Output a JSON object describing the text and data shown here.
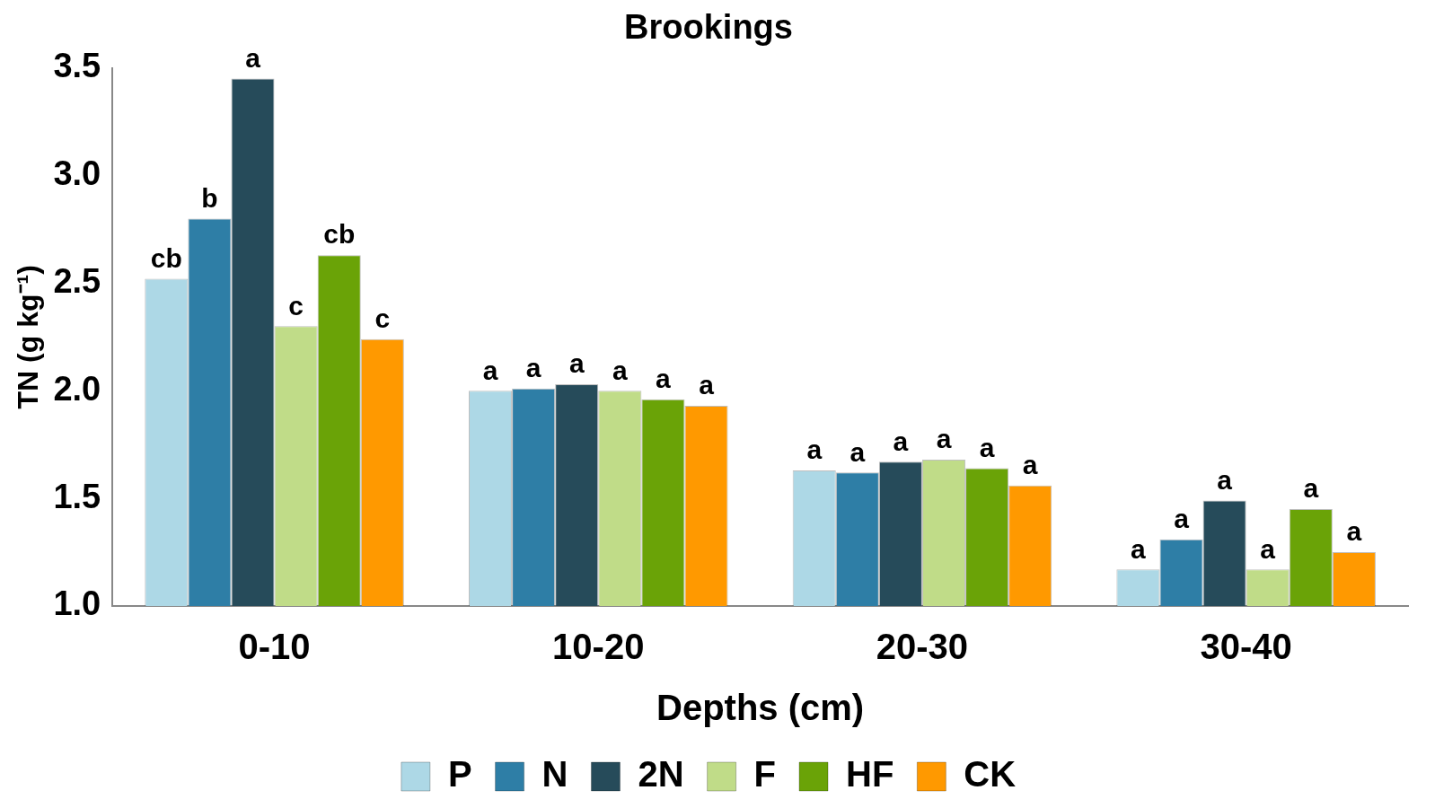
{
  "chart_data": {
    "type": "bar",
    "title": "Brookings",
    "xlabel": "Depths (cm)",
    "ylabel": "TN (g kg⁻¹)",
    "categories": [
      "0-10",
      "10-20",
      "20-30",
      "30-40"
    ],
    "series": [
      {
        "name": "P",
        "color": "#add8e6",
        "values": [
          2.52,
          2.0,
          1.63,
          1.17
        ],
        "value_labels": [
          "cb",
          "a",
          "a",
          "a"
        ]
      },
      {
        "name": "N",
        "color": "#2e7ea6",
        "values": [
          2.8,
          2.01,
          1.62,
          1.31
        ],
        "value_labels": [
          "b",
          "a",
          "a",
          "a"
        ]
      },
      {
        "name": "2N",
        "color": "#264b5a",
        "values": [
          3.45,
          2.03,
          1.67,
          1.49
        ],
        "value_labels": [
          "a",
          "a",
          "a",
          "a"
        ]
      },
      {
        "name": "F",
        "color": "#c0dc88",
        "values": [
          2.3,
          2.0,
          1.68,
          1.17
        ],
        "value_labels": [
          "c",
          "a",
          "a",
          "a"
        ]
      },
      {
        "name": "HF",
        "color": "#6aa307",
        "values": [
          2.63,
          1.96,
          1.64,
          1.45
        ],
        "value_labels": [
          "cb",
          "a",
          "a",
          "a"
        ]
      },
      {
        "name": "CK",
        "color": "#ff9900",
        "values": [
          2.24,
          1.93,
          1.56,
          1.25
        ],
        "value_labels": [
          "c",
          "a",
          "a",
          "a"
        ]
      }
    ],
    "ylim": [
      1.0,
      3.5
    ],
    "yticks": [
      {
        "value": 1.0,
        "label": "1.0"
      },
      {
        "value": 1.5,
        "label": "1.5"
      },
      {
        "value": 2.0,
        "label": "2.0"
      },
      {
        "value": 2.5,
        "label": "2.5"
      },
      {
        "value": 3.0,
        "label": "3.0"
      },
      {
        "value": 3.5,
        "label": "3.5"
      }
    ],
    "grid": false,
    "legend": "bottom"
  }
}
